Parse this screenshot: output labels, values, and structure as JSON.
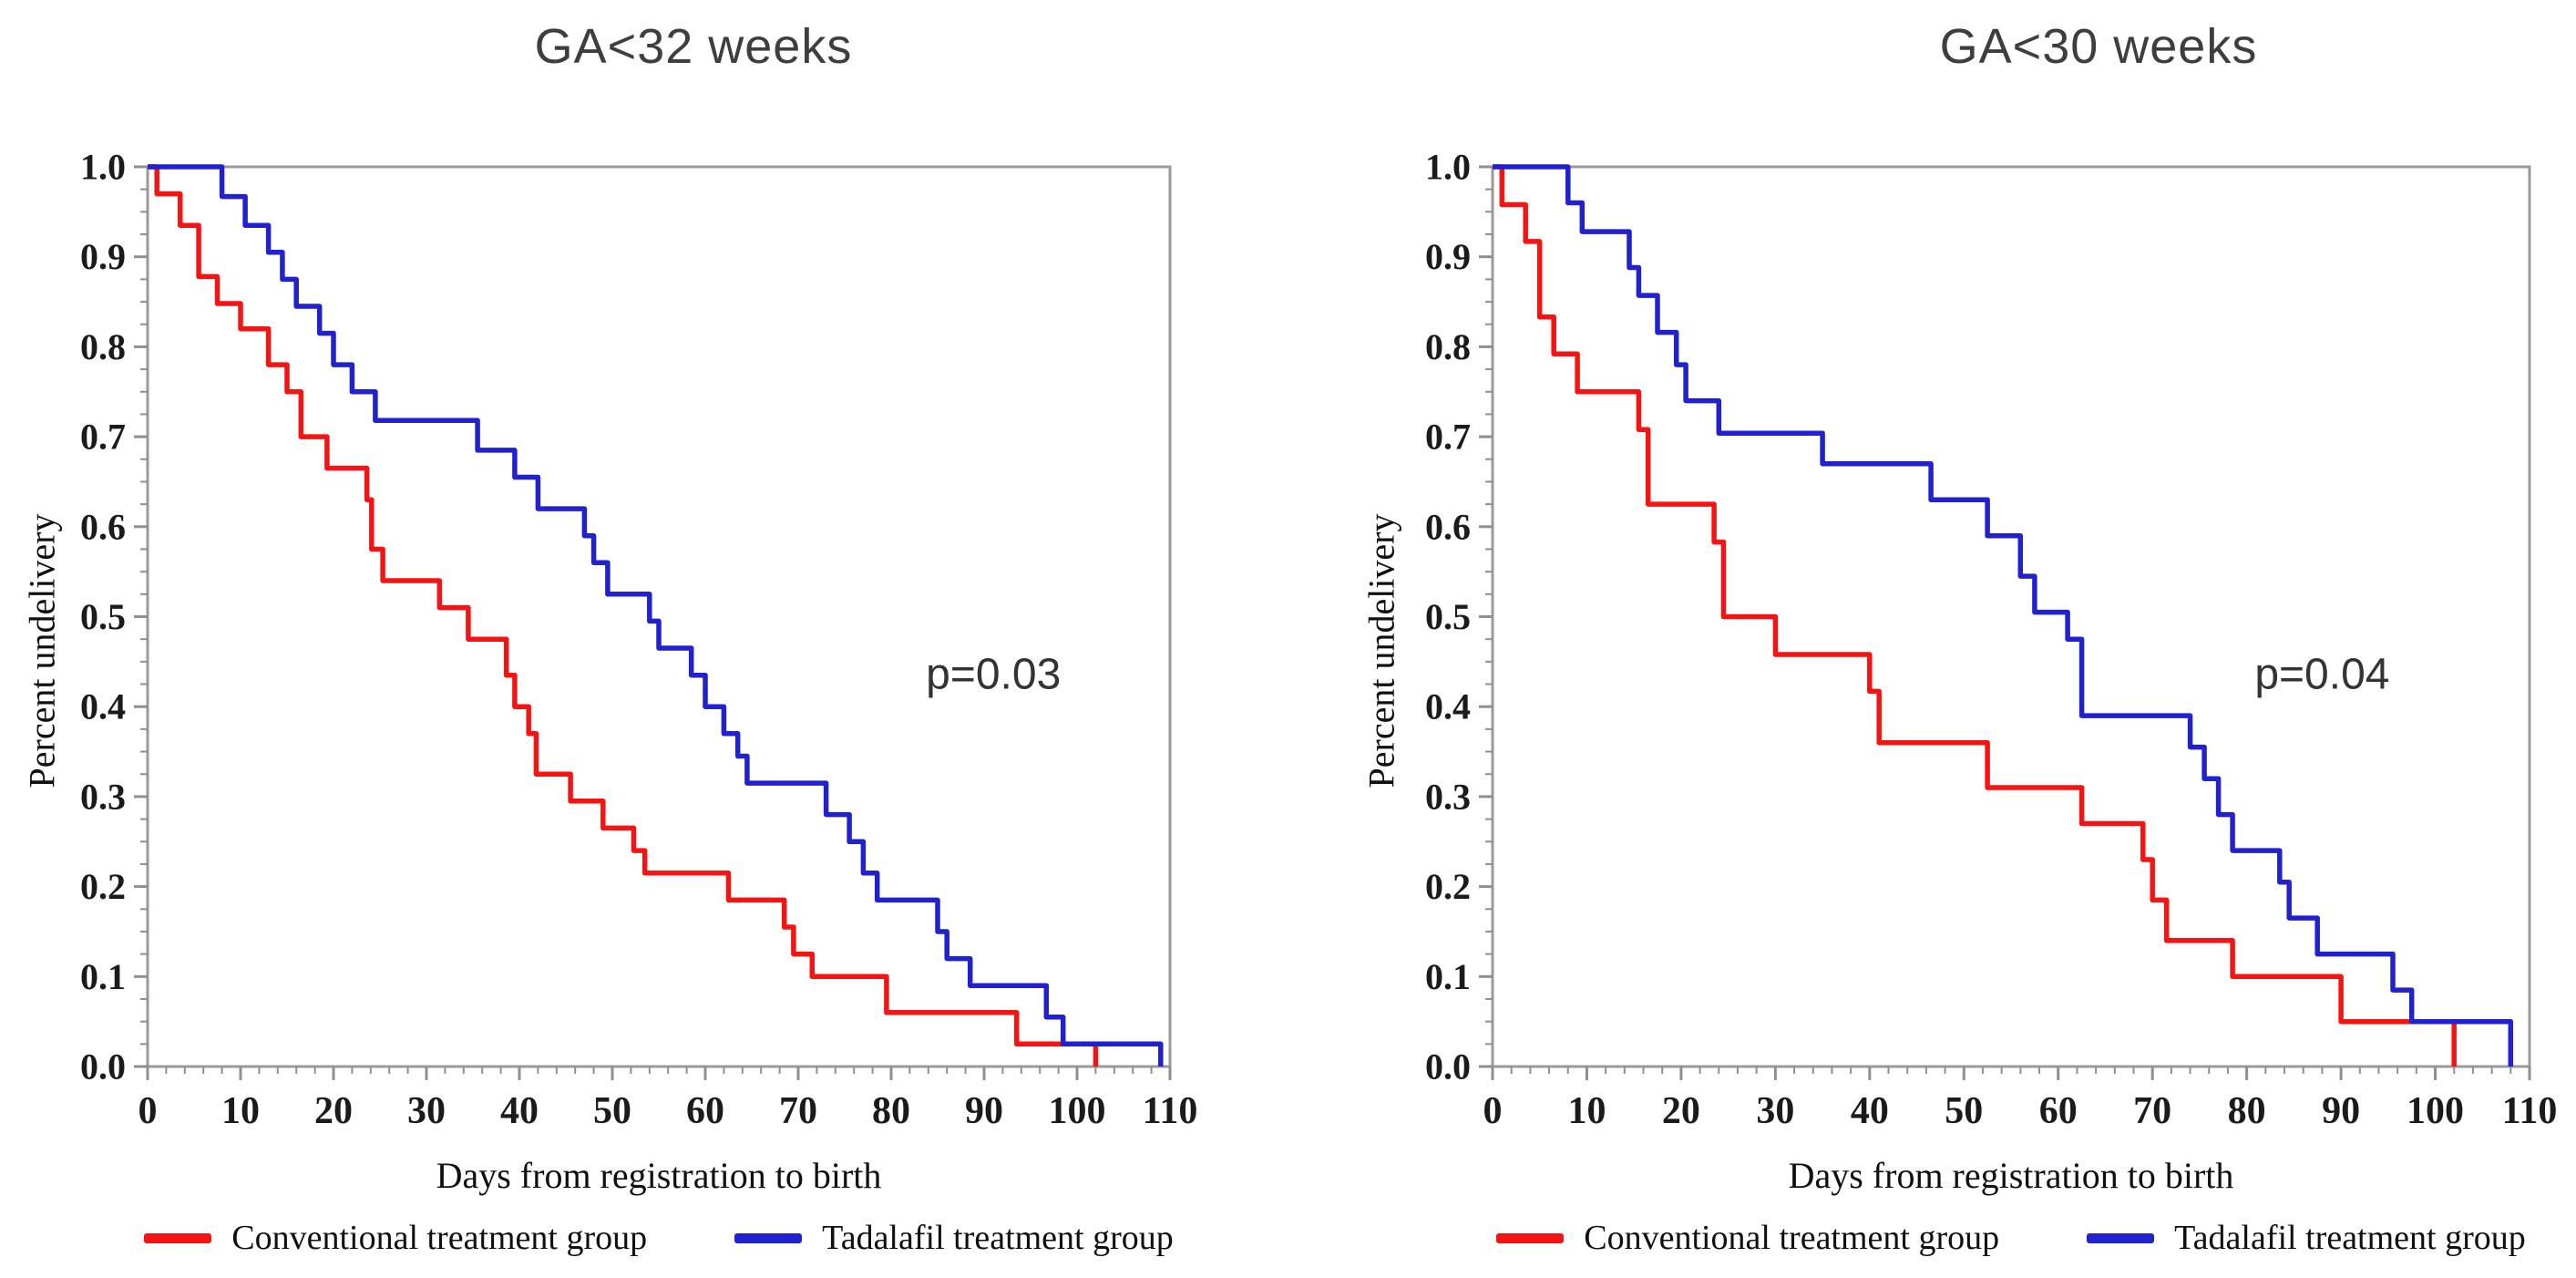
{
  "figure": {
    "background": "#ffffff",
    "axis_color": "#9a9a9a",
    "tick_label_color": "#1b1b1b",
    "annotation_color": "#333333"
  },
  "chart_data": [
    {
      "type": "line",
      "subtype": "kaplan-meier-step",
      "title": "GA<32 weeks",
      "xlabel": "Days from registration to birth",
      "ylabel": "Percent undelivery",
      "annotation": {
        "text": "p=0.03",
        "x": 91,
        "y": 0.42
      },
      "xlim": [
        0,
        110
      ],
      "ylim": [
        0,
        1.0
      ],
      "xticks": [
        0,
        10,
        20,
        30,
        40,
        50,
        60,
        70,
        80,
        90,
        100,
        110
      ],
      "yticks": [
        0,
        0.1,
        0.2,
        0.3,
        0.4,
        0.5,
        0.6,
        0.7,
        0.8,
        0.9,
        1.0
      ],
      "minor_xtick_step": 2,
      "minor_ytick_step": 0.025,
      "grid": false,
      "legend_position": "bottom",
      "series": [
        {
          "name": "Conventional treatment group",
          "color": "#f51414",
          "step": "post",
          "points": [
            [
              0,
              1.0
            ],
            [
              1,
              0.97
            ],
            [
              3.5,
              0.935
            ],
            [
              5.5,
              0.878
            ],
            [
              7.5,
              0.848
            ],
            [
              10,
              0.82
            ],
            [
              13,
              0.78
            ],
            [
              15,
              0.75
            ],
            [
              16.5,
              0.7
            ],
            [
              19.3,
              0.665
            ],
            [
              23.6,
              0.63
            ],
            [
              24.1,
              0.575
            ],
            [
              25.3,
              0.54
            ],
            [
              31.4,
              0.51
            ],
            [
              34.5,
              0.475
            ],
            [
              38.6,
              0.435
            ],
            [
              39.5,
              0.4
            ],
            [
              41,
              0.37
            ],
            [
              41.8,
              0.325
            ],
            [
              45.5,
              0.295
            ],
            [
              49,
              0.265
            ],
            [
              52.3,
              0.24
            ],
            [
              53.5,
              0.215
            ],
            [
              62.5,
              0.185
            ],
            [
              68.5,
              0.155
            ],
            [
              69.5,
              0.125
            ],
            [
              71.5,
              0.1
            ],
            [
              79.5,
              0.06
            ],
            [
              93.5,
              0.025
            ],
            [
              102,
              0
            ]
          ]
        },
        {
          "name": "Tadalafil treatment group",
          "color": "#2121cd",
          "step": "post",
          "points": [
            [
              0,
              1.0
            ],
            [
              8,
              0.967
            ],
            [
              10.5,
              0.935
            ],
            [
              13,
              0.905
            ],
            [
              14.5,
              0.875
            ],
            [
              16,
              0.845
            ],
            [
              18.5,
              0.815
            ],
            [
              20,
              0.78
            ],
            [
              22,
              0.75
            ],
            [
              24.5,
              0.718
            ],
            [
              35.5,
              0.685
            ],
            [
              39.5,
              0.655
            ],
            [
              42,
              0.62
            ],
            [
              47,
              0.59
            ],
            [
              48,
              0.56
            ],
            [
              49.5,
              0.525
            ],
            [
              54,
              0.495
            ],
            [
              55,
              0.465
            ],
            [
              58.5,
              0.435
            ],
            [
              60,
              0.4
            ],
            [
              62,
              0.37
            ],
            [
              63.5,
              0.345
            ],
            [
              64.5,
              0.315
            ],
            [
              73,
              0.28
            ],
            [
              75.5,
              0.25
            ],
            [
              77,
              0.215
            ],
            [
              78.5,
              0.185
            ],
            [
              85,
              0.15
            ],
            [
              86,
              0.12
            ],
            [
              88.5,
              0.09
            ],
            [
              96.7,
              0.055
            ],
            [
              98.5,
              0.025
            ],
            [
              109,
              0
            ]
          ]
        }
      ]
    },
    {
      "type": "line",
      "subtype": "kaplan-meier-step",
      "title": "GA<30 weeks",
      "xlabel": "Days from registration to birth",
      "ylabel": "Percent undelivery",
      "annotation": {
        "text": "p=0.04",
        "x": 88,
        "y": 0.42
      },
      "xlim": [
        0,
        110
      ],
      "ylim": [
        0,
        1.0
      ],
      "xticks": [
        0,
        10,
        20,
        30,
        40,
        50,
        60,
        70,
        80,
        90,
        100,
        110
      ],
      "yticks": [
        0,
        0.1,
        0.2,
        0.3,
        0.4,
        0.5,
        0.6,
        0.7,
        0.8,
        0.9,
        1.0
      ],
      "minor_xtick_step": 2,
      "minor_ytick_step": 0.025,
      "grid": false,
      "legend_position": "bottom",
      "series": [
        {
          "name": "Conventional treatment group",
          "color": "#f51414",
          "step": "post",
          "points": [
            [
              0,
              1.0
            ],
            [
              1,
              0.958
            ],
            [
              3.5,
              0.917
            ],
            [
              5,
              0.833
            ],
            [
              6.5,
              0.792
            ],
            [
              9,
              0.75
            ],
            [
              15.5,
              0.708
            ],
            [
              16.5,
              0.625
            ],
            [
              23.5,
              0.583
            ],
            [
              24.5,
              0.5
            ],
            [
              30,
              0.458
            ],
            [
              40,
              0.417
            ],
            [
              41,
              0.36
            ],
            [
              52.5,
              0.31
            ],
            [
              62.5,
              0.27
            ],
            [
              69,
              0.23
            ],
            [
              70,
              0.185
            ],
            [
              71.5,
              0.14
            ],
            [
              78.5,
              0.1
            ],
            [
              90,
              0.05
            ],
            [
              102,
              0
            ]
          ]
        },
        {
          "name": "Tadalafil treatment group",
          "color": "#2121cd",
          "step": "post",
          "points": [
            [
              0,
              1.0
            ],
            [
              8,
              0.96
            ],
            [
              9.5,
              0.928
            ],
            [
              14.5,
              0.888
            ],
            [
              15.5,
              0.857
            ],
            [
              17.5,
              0.816
            ],
            [
              19.5,
              0.78
            ],
            [
              20.5,
              0.74
            ],
            [
              24,
              0.704
            ],
            [
              35,
              0.67
            ],
            [
              46.5,
              0.63
            ],
            [
              52.5,
              0.59
            ],
            [
              56,
              0.545
            ],
            [
              57.5,
              0.505
            ],
            [
              61,
              0.475
            ],
            [
              62.5,
              0.39
            ],
            [
              74,
              0.355
            ],
            [
              75.5,
              0.32
            ],
            [
              77,
              0.28
            ],
            [
              78.5,
              0.24
            ],
            [
              83.5,
              0.205
            ],
            [
              84.5,
              0.165
            ],
            [
              87.5,
              0.125
            ],
            [
              95.5,
              0.085
            ],
            [
              97.5,
              0.05
            ],
            [
              108,
              0
            ]
          ]
        }
      ]
    }
  ]
}
